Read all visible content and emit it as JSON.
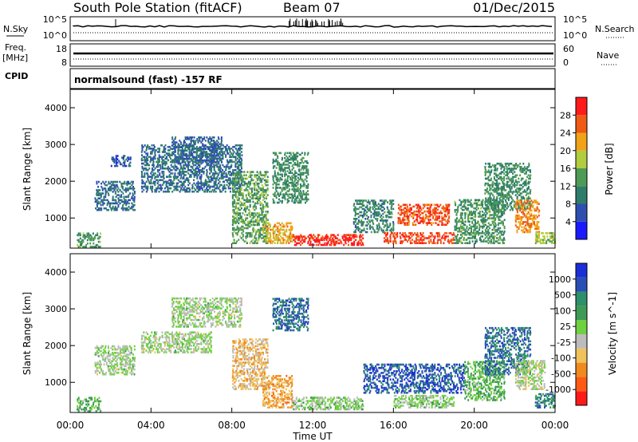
{
  "header": {
    "station": "South Pole Station (fitACF)",
    "beam": "Beam 07",
    "date": "01/Dec/2015"
  },
  "noise_panel": {
    "left_label": "N.Sky",
    "right_label": "N.Search",
    "left_ticks": [
      "10^5",
      "10^0"
    ],
    "right_ticks": [
      "10^5",
      "10^0"
    ]
  },
  "freq_panel": {
    "left_label_1": "Freq.",
    "left_label_2": "[MHz]",
    "right_label": "Nave",
    "left_ticks": [
      "18",
      "8"
    ],
    "right_ticks": [
      "60",
      "0"
    ]
  },
  "cpid": {
    "label": "CPID",
    "text": "normalsound (fast) -157 RF"
  },
  "colors": {
    "power_scale": [
      "#1a1aff",
      "#2f4fb0",
      "#2e7d6b",
      "#4f9a55",
      "#b2cc3f",
      "#f0a318",
      "#ef5a14",
      "#ff1a1a"
    ],
    "velocity_scale": [
      "#ff1a1a",
      "#ff5a14",
      "#f08a1e",
      "#f0c25a",
      "#bcbcbc",
      "#6fd13f",
      "#3f9a55",
      "#2e8f6b",
      "#2a4fb4",
      "#1a2fd6"
    ],
    "ground_scatter": "#7a7a7a"
  },
  "chart_data": [
    {
      "type": "heatmap",
      "title": "",
      "xlabel": "Time UT",
      "ylabel": "Slant Range [km]",
      "xlim": [
        0,
        24
      ],
      "ylim": [
        180,
        4500
      ],
      "x_ticks": [
        "00:00",
        "04:00",
        "08:00",
        "12:00",
        "16:00",
        "20:00",
        "00:00"
      ],
      "y_ticks": [
        "1000",
        "2000",
        "3000",
        "4000"
      ],
      "colorbar": {
        "label": "Power [dB]",
        "ticks": [
          "4",
          "8",
          "12",
          "16",
          "20",
          "24",
          "28"
        ],
        "range": [
          0,
          30
        ]
      },
      "regions": [
        {
          "t": [
            0.3,
            1.5
          ],
          "r": [
            200,
            600
          ],
          "value": 12
        },
        {
          "t": [
            1.2,
            3.2
          ],
          "r": [
            1200,
            2000
          ],
          "value": 8
        },
        {
          "t": [
            2.0,
            3.0
          ],
          "r": [
            2400,
            2700
          ],
          "value": 6
        },
        {
          "t": [
            3.5,
            8.5
          ],
          "r": [
            1700,
            3000
          ],
          "value": 8
        },
        {
          "t": [
            5.0,
            7.5
          ],
          "r": [
            2500,
            3200
          ],
          "value": 7
        },
        {
          "t": [
            8.0,
            9.8
          ],
          "r": [
            300,
            2300
          ],
          "value": 13
        },
        {
          "t": [
            10.0,
            11.8
          ],
          "r": [
            1400,
            2800
          ],
          "value": 11
        },
        {
          "t": [
            9.5,
            11.0
          ],
          "r": [
            300,
            900
          ],
          "value": 20
        },
        {
          "t": [
            11.0,
            14.5
          ],
          "r": [
            250,
            550
          ],
          "value": 27
        },
        {
          "t": [
            14.0,
            16.0
          ],
          "r": [
            600,
            1500
          ],
          "value": 10
        },
        {
          "t": [
            15.5,
            19.0
          ],
          "r": [
            300,
            600
          ],
          "value": 26
        },
        {
          "t": [
            16.2,
            18.8
          ],
          "r": [
            800,
            1400
          ],
          "value": 25
        },
        {
          "t": [
            19.0,
            21.5
          ],
          "r": [
            300,
            1500
          ],
          "value": 12
        },
        {
          "t": [
            20.5,
            22.8
          ],
          "r": [
            1200,
            2500
          ],
          "value": 11
        },
        {
          "t": [
            22.0,
            23.2
          ],
          "r": [
            600,
            1500
          ],
          "value": 22
        },
        {
          "t": [
            23.0,
            24.0
          ],
          "r": [
            300,
            600
          ],
          "value": 16
        }
      ]
    },
    {
      "type": "heatmap",
      "title": "",
      "xlabel": "Time UT",
      "ylabel": "Slant Range [km]",
      "xlim": [
        0,
        24
      ],
      "ylim": [
        180,
        4500
      ],
      "x_ticks": [
        "00:00",
        "04:00",
        "08:00",
        "12:00",
        "16:00",
        "20:00",
        "00:00"
      ],
      "y_ticks": [
        "1000",
        "2000",
        "3000",
        "4000"
      ],
      "colorbar": {
        "label": "Velocity [m s^-1]",
        "ticks": [
          "1000",
          "500",
          "100",
          "25",
          "-25",
          "-100",
          "-500",
          "-1000"
        ],
        "range": [
          -1000,
          1000
        ]
      },
      "regions": [
        {
          "t": [
            0.3,
            1.5
          ],
          "r": [
            200,
            600
          ],
          "value": 200
        },
        {
          "t": [
            1.2,
            3.2
          ],
          "r": [
            1200,
            2000
          ],
          "value": 0
        },
        {
          "t": [
            3.5,
            7.0
          ],
          "r": [
            1800,
            2400
          ],
          "value": 0
        },
        {
          "t": [
            5.0,
            8.5
          ],
          "r": [
            2500,
            3300
          ],
          "value": 0
        },
        {
          "t": [
            8.0,
            9.8
          ],
          "r": [
            800,
            2200
          ],
          "value": -300
        },
        {
          "t": [
            9.5,
            11.0
          ],
          "r": [
            300,
            1200
          ],
          "value": -400
        },
        {
          "t": [
            10.0,
            11.8
          ],
          "r": [
            2400,
            3300
          ],
          "value": 600
        },
        {
          "t": [
            11.0,
            14.5
          ],
          "r": [
            250,
            600
          ],
          "value": 80
        },
        {
          "t": [
            14.5,
            19.5
          ],
          "r": [
            700,
            1500
          ],
          "value": 700
        },
        {
          "t": [
            16.0,
            19.0
          ],
          "r": [
            300,
            650
          ],
          "value": 60
        },
        {
          "t": [
            19.5,
            21.5
          ],
          "r": [
            500,
            1600
          ],
          "value": 200
        },
        {
          "t": [
            20.5,
            22.8
          ],
          "r": [
            1200,
            2500
          ],
          "value": 600
        },
        {
          "t": [
            22.0,
            23.5
          ],
          "r": [
            800,
            1600
          ],
          "value": -50
        },
        {
          "t": [
            23.0,
            24.0
          ],
          "r": [
            300,
            700
          ],
          "value": 500
        }
      ]
    }
  ]
}
